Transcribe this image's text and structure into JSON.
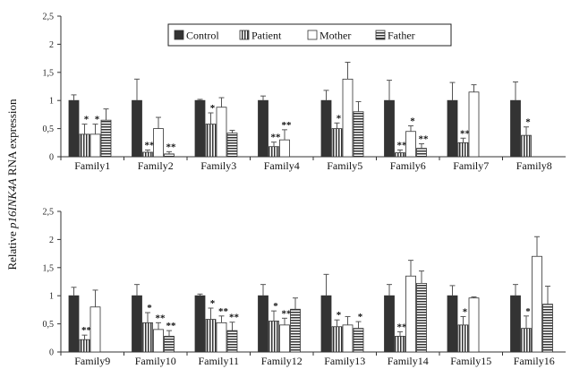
{
  "chart_data": {
    "type": "bar",
    "ylabel_pre": "Relative ",
    "ylabel_gene": "p16INK4A",
    "ylabel_post": " RNA expression",
    "ylim": [
      0,
      2.5
    ],
    "yticks": [
      "0",
      "0,5",
      "1",
      "1,5",
      "2",
      "2,5"
    ],
    "series": [
      {
        "name": "Control",
        "pattern": "solid",
        "color": "#333333"
      },
      {
        "name": "Patient",
        "pattern": "vertical",
        "color": "#333333"
      },
      {
        "name": "Mother",
        "pattern": "white",
        "color": "#333333"
      },
      {
        "name": "Father",
        "pattern": "horizontal",
        "color": "#333333"
      }
    ],
    "panels": [
      {
        "categories": [
          "Family1",
          "Family2",
          "Family3",
          "Family4",
          "Family5",
          "Family6",
          "Family7",
          "Family8"
        ],
        "values": [
          [
            1.0,
            0.4,
            0.4,
            0.65
          ],
          [
            1.0,
            0.08,
            0.5,
            0.05
          ],
          [
            1.0,
            0.58,
            0.88,
            0.42
          ],
          [
            1.0,
            0.18,
            0.3,
            null
          ],
          [
            1.0,
            0.5,
            1.38,
            0.8
          ],
          [
            1.0,
            0.07,
            0.45,
            0.15
          ],
          [
            1.0,
            0.25,
            1.15,
            null
          ],
          [
            1.0,
            0.38,
            null,
            null
          ]
        ],
        "errors": [
          [
            0.1,
            0.18,
            0.18,
            0.2
          ],
          [
            0.38,
            0.04,
            0.2,
            0.04
          ],
          [
            0.02,
            0.2,
            0.17,
            0.05
          ],
          [
            0.08,
            0.08,
            0.18,
            null
          ],
          [
            0.18,
            0.1,
            0.3,
            0.18
          ],
          [
            0.36,
            0.05,
            0.1,
            0.08
          ],
          [
            0.32,
            0.08,
            0.13,
            null
          ],
          [
            0.33,
            0.15,
            null,
            null
          ]
        ],
        "stars": [
          [
            "",
            "*",
            "*",
            ""
          ],
          [
            "",
            "**",
            "",
            "**"
          ],
          [
            "",
            "*",
            "",
            ""
          ],
          [
            "",
            "**",
            "**",
            ""
          ],
          [
            "",
            "*",
            "",
            ""
          ],
          [
            "",
            "**",
            "*",
            "**"
          ],
          [
            "",
            "**",
            "",
            ""
          ],
          [
            "",
            "*",
            "",
            ""
          ]
        ]
      },
      {
        "categories": [
          "Family9",
          "Family10",
          "Family11",
          "Family12",
          "Family13",
          "Family14",
          "Family15",
          "Family16"
        ],
        "values": [
          [
            1.0,
            0.22,
            0.8,
            null
          ],
          [
            1.0,
            0.52,
            0.4,
            0.28
          ],
          [
            1.0,
            0.58,
            0.52,
            0.38
          ],
          [
            1.0,
            0.55,
            0.48,
            0.76
          ],
          [
            1.0,
            0.45,
            0.48,
            0.42
          ],
          [
            1.0,
            0.28,
            1.35,
            1.22
          ],
          [
            1.0,
            0.48,
            0.96,
            null
          ],
          [
            1.0,
            0.42,
            1.7,
            0.85
          ]
        ],
        "errors": [
          [
            0.15,
            0.08,
            0.3,
            null
          ],
          [
            0.2,
            0.18,
            0.12,
            0.1
          ],
          [
            0.03,
            0.2,
            0.12,
            0.15
          ],
          [
            0.2,
            0.18,
            0.12,
            0.2
          ],
          [
            0.38,
            0.12,
            0.15,
            0.12
          ],
          [
            0.2,
            0.08,
            0.28,
            0.22
          ],
          [
            0.18,
            0.15,
            0.02,
            null
          ],
          [
            0.2,
            0.22,
            0.35,
            0.32
          ]
        ],
        "stars": [
          [
            "",
            "**",
            "",
            ""
          ],
          [
            "",
            "*",
            "**",
            "**"
          ],
          [
            "",
            "*",
            "**",
            "**"
          ],
          [
            "",
            "*",
            "**",
            ""
          ],
          [
            "",
            "*",
            "",
            "*"
          ],
          [
            "",
            "**",
            "",
            ""
          ],
          [
            "",
            "*",
            "",
            ""
          ],
          [
            "",
            "*",
            "",
            ""
          ]
        ]
      }
    ]
  }
}
